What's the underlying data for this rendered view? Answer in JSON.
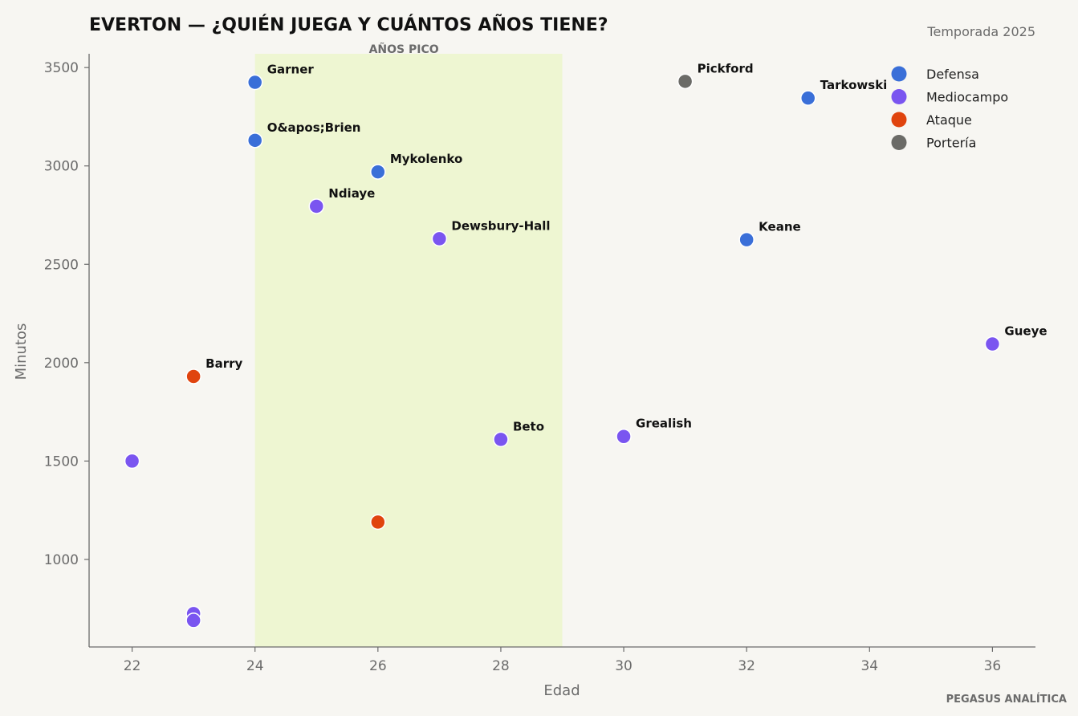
{
  "chart_data": {
    "type": "scatter",
    "title": "EVERTON — ¿QUIÉN JUEGA Y CUÁNTOS AÑOS TIENE?",
    "subtitle": "Temporada 2025",
    "xlabel": "Edad",
    "ylabel": "Minutos",
    "xlim": [
      21.3,
      36.7
    ],
    "ylim": [
      555,
      3570
    ],
    "xticks": [
      22,
      24,
      26,
      28,
      30,
      32,
      34,
      36
    ],
    "yticks": [
      1000,
      1500,
      2000,
      2500,
      3000,
      3500
    ],
    "grid": false,
    "legend_position": "top-right",
    "highlight_band": {
      "label": "AÑOS PICO",
      "x_from": 24,
      "x_to": 29,
      "color": "#eef6d2"
    },
    "series": [
      {
        "name": "Defensa",
        "color": "#3a6fd8",
        "points": [
          {
            "label": "Garner",
            "x": 24,
            "y": 3425
          },
          {
            "label": "O&apos;Brien",
            "x": 24,
            "y": 3130
          },
          {
            "label": "Mykolenko",
            "x": 26,
            "y": 2970
          },
          {
            "label": "Keane",
            "x": 32,
            "y": 2625
          },
          {
            "label": "Tarkowski",
            "x": 33,
            "y": 3345
          }
        ]
      },
      {
        "name": "Mediocampo",
        "color": "#7a55f0",
        "points": [
          {
            "label": "Ndiaye",
            "x": 25,
            "y": 2795
          },
          {
            "label": "Dewsbury-Hall",
            "x": 27,
            "y": 2630
          },
          {
            "label": "Beto",
            "x": 28,
            "y": 1610
          },
          {
            "label": "Grealish",
            "x": 30,
            "y": 1625
          },
          {
            "label": "Gueye",
            "x": 36,
            "y": 2095
          },
          {
            "label": "",
            "x": 22,
            "y": 1500
          },
          {
            "label": "",
            "x": 23,
            "y": 725
          },
          {
            "label": "",
            "x": 23,
            "y": 690
          }
        ]
      },
      {
        "name": "Ataque",
        "color": "#e0440e",
        "points": [
          {
            "label": "Barry",
            "x": 23,
            "y": 1930
          },
          {
            "label": "",
            "x": 26,
            "y": 1190
          }
        ]
      },
      {
        "name": "Portería",
        "color": "#6b6b67",
        "points": [
          {
            "label": "Pickford",
            "x": 31,
            "y": 3430
          }
        ]
      }
    ]
  },
  "footer": {
    "credit": "PEGASUS ANALÍTICA"
  }
}
